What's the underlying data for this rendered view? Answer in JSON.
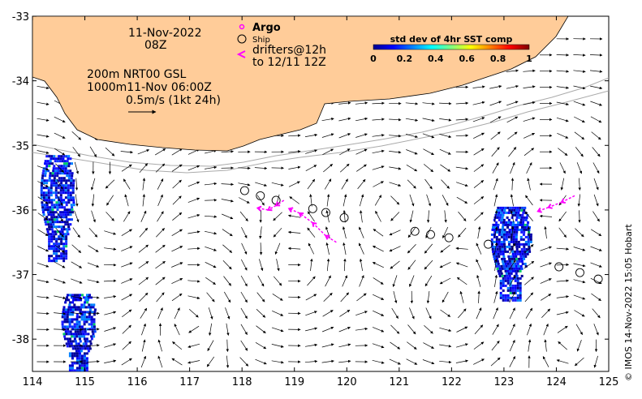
{
  "map": {
    "lon_range": [
      114,
      125
    ],
    "lat_range": [
      -38.5,
      -33
    ],
    "x_ticks": [
      "114",
      "115",
      "116",
      "117",
      "118",
      "119",
      "120",
      "121",
      "122",
      "123",
      "124",
      "125"
    ],
    "y_ticks": [
      "-33",
      "-34",
      "-35",
      "-36",
      "-37",
      "-38"
    ],
    "land_color": "#ffcc99",
    "coast_color": "#999999"
  },
  "annotations": {
    "date": "11-Nov-2022",
    "hour": "08Z",
    "contours_line1": "200m  NRT00 GSL",
    "contours_line2": "1000m11-Nov 06:00Z",
    "vector_scale": "0.5m/s (1kt 24h)",
    "argo_label": "Argo",
    "ship_label": "Ship",
    "drifters_line1": "drifters@12h",
    "drifters_line2": "to 12/11 12Z"
  },
  "colorbar": {
    "title": "std dev of 4hr SST comp",
    "ticks": [
      "0",
      "0.2",
      "0.4",
      "0.6",
      "0.8",
      "1"
    ],
    "colormap": "jet"
  },
  "ship_positions": [
    [
      118.05,
      -35.7
    ],
    [
      118.35,
      -35.78
    ],
    [
      118.65,
      -35.85
    ],
    [
      119.35,
      -35.98
    ],
    [
      119.6,
      -36.04
    ],
    [
      119.95,
      -36.12
    ],
    [
      121.3,
      -36.33
    ],
    [
      121.6,
      -36.38
    ],
    [
      121.95,
      -36.43
    ],
    [
      122.7,
      -36.53
    ],
    [
      124.05,
      -36.88
    ],
    [
      124.45,
      -36.97
    ],
    [
      124.8,
      -37.07
    ]
  ],
  "drifter_tracks": [
    [
      [
        118.8,
        -35.85
      ],
      [
        118.65,
        -35.93
      ],
      [
        118.5,
        -36.0
      ],
      [
        118.3,
        -35.97
      ]
    ],
    [
      [
        119.8,
        -36.5
      ],
      [
        119.6,
        -36.4
      ],
      [
        119.35,
        -36.2
      ],
      [
        119.1,
        -36.05
      ],
      [
        118.9,
        -35.98
      ]
    ],
    [
      [
        124.35,
        -35.78
      ],
      [
        124.1,
        -35.88
      ],
      [
        123.85,
        -35.96
      ],
      [
        123.65,
        -36.02
      ]
    ]
  ],
  "sst_patches": [
    {
      "lon": [
        114.15,
        114.8
      ],
      "lat": [
        -36.8,
        -35.15
      ]
    },
    {
      "lon": [
        114.55,
        115.2
      ],
      "lat": [
        -38.5,
        -37.3
      ]
    },
    {
      "lon": [
        122.75,
        123.5
      ],
      "lat": [
        -37.4,
        -35.95
      ]
    }
  ],
  "credit": "© IMOS 14-Nov-2022 15:05 Hobart"
}
